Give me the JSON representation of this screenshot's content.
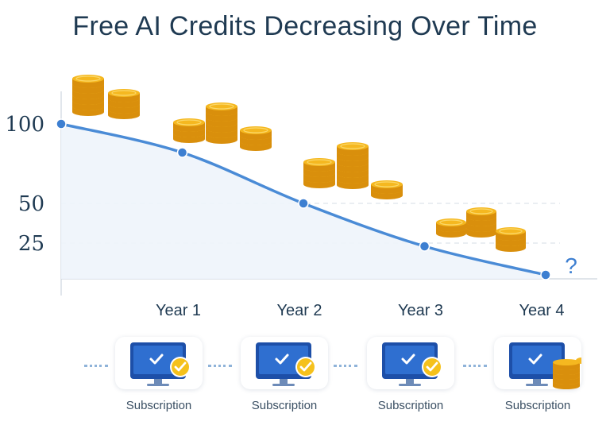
{
  "title": "Free AI Credits Decreasing Over Time",
  "chart_data": {
    "type": "line",
    "title": "Free AI Credits Decreasing Over Time",
    "x": [
      0,
      1,
      2,
      3,
      4
    ],
    "y": [
      100,
      82,
      50,
      23,
      5
    ],
    "yticks": [
      25,
      50,
      100
    ],
    "ytick_labels": [
      "25",
      "50",
      "100"
    ],
    "xticks": [
      1,
      2,
      3,
      4
    ],
    "xtick_labels": [
      "Year 1",
      "Year 2",
      "Year 3",
      "Year 4"
    ],
    "annotation": "?",
    "grid": "dashed horizontal at 25 and 50",
    "line_color": "#4a8bd6",
    "fill_color": "#eef4fb"
  },
  "subscriptions": [
    {
      "label": "Subscription",
      "icon": "monitor-check-icon"
    },
    {
      "label": "Subscription",
      "icon": "monitor-check-icon"
    },
    {
      "label": "Subscription",
      "icon": "monitor-check-icon"
    },
    {
      "label": "Subscription",
      "icon": "monitor-coins-icon"
    }
  ],
  "colors": {
    "title": "#1f3a52",
    "coin": "#f5b820",
    "coin_edge": "#d98f0c",
    "monitor": "#2f6fd0",
    "check": "#f5c11c"
  }
}
